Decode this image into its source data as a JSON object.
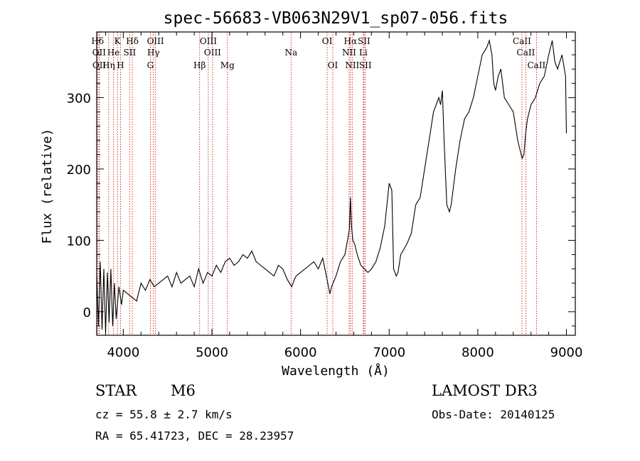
{
  "chart_data": {
    "type": "line",
    "title": "spec-56683-VB063N29V1_sp07-056.fits",
    "xlabel": "Wavelength (Å)",
    "ylabel": "Flux (relative)",
    "xlim": [
      3700,
      9100
    ],
    "ylim": [
      -33,
      392
    ],
    "xticks": [
      4000,
      5000,
      6000,
      7000,
      8000,
      9000
    ],
    "yticks": [
      0,
      100,
      200,
      300
    ],
    "series": [
      {
        "name": "spectrum",
        "x": [
          3700,
          3720,
          3740,
          3760,
          3780,
          3800,
          3820,
          3840,
          3860,
          3880,
          3900,
          3920,
          3950,
          3980,
          4000,
          4050,
          4100,
          4150,
          4200,
          4250,
          4300,
          4350,
          4400,
          4450,
          4500,
          4550,
          4600,
          4650,
          4700,
          4750,
          4800,
          4850,
          4900,
          4950,
          5000,
          5050,
          5100,
          5150,
          5200,
          5250,
          5300,
          5350,
          5400,
          5450,
          5500,
          5550,
          5600,
          5650,
          5700,
          5750,
          5800,
          5850,
          5900,
          5930,
          5950,
          6000,
          6050,
          6100,
          6150,
          6200,
          6250,
          6300,
          6330,
          6350,
          6400,
          6450,
          6500,
          6530,
          6550,
          6563,
          6575,
          6590,
          6610,
          6640,
          6680,
          6720,
          6760,
          6800,
          6850,
          6900,
          6950,
          7000,
          7030,
          7050,
          7080,
          7100,
          7130,
          7200,
          7250,
          7300,
          7350,
          7400,
          7450,
          7500,
          7560,
          7580,
          7600,
          7620,
          7650,
          7680,
          7700,
          7750,
          7800,
          7850,
          7900,
          7950,
          8000,
          8050,
          8100,
          8130,
          8160,
          8180,
          8200,
          8230,
          8260,
          8300,
          8350,
          8400,
          8450,
          8480,
          8500,
          8520,
          8540,
          8560,
          8600,
          8650,
          8700,
          8750,
          8800,
          8840,
          8870,
          8900,
          8950,
          8990,
          9000
        ],
        "y": [
          50,
          -20,
          70,
          -25,
          60,
          -30,
          55,
          -15,
          60,
          -20,
          40,
          -10,
          35,
          10,
          30,
          25,
          20,
          15,
          40,
          30,
          45,
          35,
          40,
          45,
          50,
          35,
          55,
          40,
          45,
          50,
          35,
          60,
          40,
          55,
          50,
          65,
          55,
          70,
          75,
          65,
          70,
          80,
          75,
          85,
          70,
          65,
          60,
          55,
          50,
          65,
          60,
          45,
          35,
          45,
          50,
          55,
          60,
          65,
          70,
          60,
          75,
          45,
          25,
          35,
          50,
          70,
          80,
          100,
          115,
          160,
          120,
          100,
          95,
          80,
          65,
          60,
          55,
          60,
          70,
          90,
          120,
          180,
          170,
          60,
          50,
          55,
          80,
          95,
          110,
          150,
          160,
          200,
          240,
          280,
          300,
          290,
          310,
          240,
          150,
          140,
          150,
          200,
          240,
          270,
          280,
          300,
          330,
          360,
          370,
          380,
          360,
          320,
          310,
          330,
          340,
          300,
          290,
          280,
          240,
          225,
          215,
          220,
          250,
          270,
          290,
          300,
          320,
          330,
          360,
          380,
          350,
          340,
          360,
          330,
          250
        ]
      }
    ],
    "emission_lines": [
      {
        "label": "Hδ",
        "wavelength": 3710,
        "row": 1
      },
      {
        "label": "OII",
        "wavelength": 3727,
        "row": 2
      },
      {
        "label": "OII",
        "wavelength": 3729,
        "row": 3
      },
      {
        "label": "K",
        "wavelength": 3934,
        "row": 1
      },
      {
        "label": "He",
        "wavelength": 3889,
        "row": 2
      },
      {
        "label": "Hη",
        "wavelength": 3835,
        "row": 3
      },
      {
        "label": "SII",
        "wavelength": 4072,
        "row": 2
      },
      {
        "label": "H",
        "wavelength": 3969,
        "row": 3
      },
      {
        "label": "Hδ",
        "wavelength": 4102,
        "row": 1
      },
      {
        "label": "OIII",
        "wavelength": 4363,
        "row": 1
      },
      {
        "label": "Hγ",
        "wavelength": 4340,
        "row": 2
      },
      {
        "label": "G",
        "wavelength": 4305,
        "row": 3
      },
      {
        "label": "Hβ",
        "wavelength": 4861,
        "row": 3
      },
      {
        "label": "OIII",
        "wavelength": 4959,
        "row": 1
      },
      {
        "label": "OIII",
        "wavelength": 5007,
        "row": 2
      },
      {
        "label": "Mg",
        "wavelength": 5175,
        "row": 3
      },
      {
        "label": "Na",
        "wavelength": 5893,
        "row": 2
      },
      {
        "label": "OI",
        "wavelength": 6300,
        "row": 1
      },
      {
        "label": "OI",
        "wavelength": 6364,
        "row": 3
      },
      {
        "label": "Hα",
        "wavelength": 6563,
        "row": 1
      },
      {
        "label": "NII",
        "wavelength": 6548,
        "row": 2
      },
      {
        "label": "NII",
        "wavelength": 6583,
        "row": 3
      },
      {
        "label": "SII",
        "wavelength": 6716,
        "row": 1
      },
      {
        "label": "Li",
        "wavelength": 6708,
        "row": 2
      },
      {
        "label": "SII",
        "wavelength": 6731,
        "row": 3
      },
      {
        "label": "CaII",
        "wavelength": 8498,
        "row": 1
      },
      {
        "label": "CaII",
        "wavelength": 8542,
        "row": 2
      },
      {
        "label": "CaII",
        "wavelength": 8662,
        "row": 3
      }
    ],
    "line_color": "#000000",
    "emission_color": "#cc0000"
  },
  "info": {
    "class": "STAR",
    "subclass": "M6",
    "survey": "LAMOST DR3",
    "cz": "cz = 55.8 ± 2.7 km/s",
    "obs_date": "Obs-Date: 20140125",
    "radec": "RA =  65.41723, DEC =  28.23957"
  }
}
